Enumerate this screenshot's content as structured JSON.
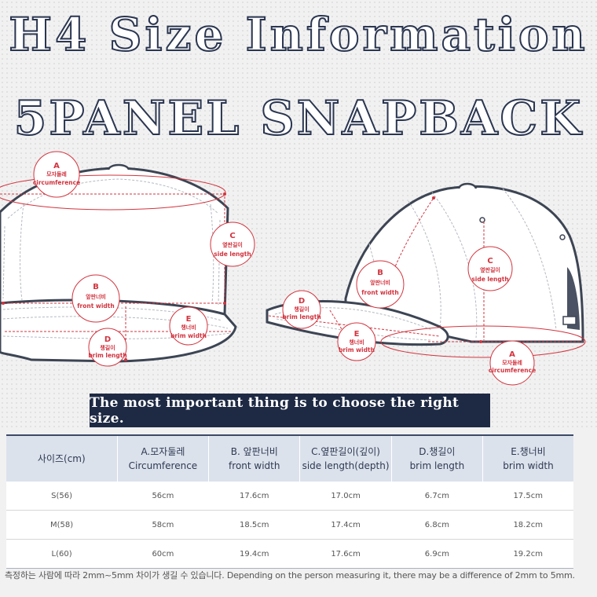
{
  "title": {
    "line1": "H4 Size Information",
    "line2": "5PANEL SNAPBACK"
  },
  "diagram": {
    "front": {
      "a": {
        "letter": "A",
        "korean": "모자둘레",
        "english": "circumference"
      },
      "b": {
        "letter": "B",
        "korean": "앞판너비",
        "english": "front width"
      },
      "c": {
        "letter": "C",
        "korean": "옆판길이",
        "english": "side length"
      },
      "d": {
        "letter": "D",
        "korean": "챙길이",
        "english": "brim length"
      },
      "e": {
        "letter": "E",
        "korean": "챙너비",
        "english": "brim width"
      }
    },
    "side": {
      "a": {
        "letter": "A",
        "korean": "모자둘레",
        "english": "circumference"
      },
      "b": {
        "letter": "B",
        "korean": "앞판너비",
        "english": "front width"
      },
      "c": {
        "letter": "C",
        "korean": "옆판길이",
        "english": "side length"
      },
      "d": {
        "letter": "D",
        "korean": "챙길이",
        "english": "brim length"
      },
      "e": {
        "letter": "E",
        "korean": "챙너비",
        "english": "brim width"
      }
    },
    "colors": {
      "accent": "#d2343f",
      "outline": "#3d4554",
      "cap_fill": "#ffffff"
    }
  },
  "banner": "The most important thing is to choose the right size.",
  "table": {
    "headers": [
      {
        "line1": "사이즈(cm)",
        "line2": ""
      },
      {
        "line1": "A.모자둘레",
        "line2": "Circumference"
      },
      {
        "line1": "B. 앞판너비",
        "line2": "front width"
      },
      {
        "line1": "C.옆판길이(깊이)",
        "line2": "side length(depth)"
      },
      {
        "line1": "D.챙길이",
        "line2": "brim length"
      },
      {
        "line1": "E.챙너비",
        "line2": "brim width"
      }
    ],
    "rows": [
      [
        "S(56)",
        "56cm",
        "17.6cm",
        "17.0cm",
        "6.7cm",
        "17.5cm"
      ],
      [
        "M(58)",
        "58cm",
        "18.5cm",
        "17.4cm",
        "6.8cm",
        "18.2cm"
      ],
      [
        "L(60)",
        "60cm",
        "19.4cm",
        "17.6cm",
        "6.9cm",
        "19.2cm"
      ]
    ]
  },
  "note": "측정하는 사람에 따라  2mm~5mm 차이가 생길 수 있습니다. Depending on the person measuring it, there may be a difference of 2mm to 5mm."
}
